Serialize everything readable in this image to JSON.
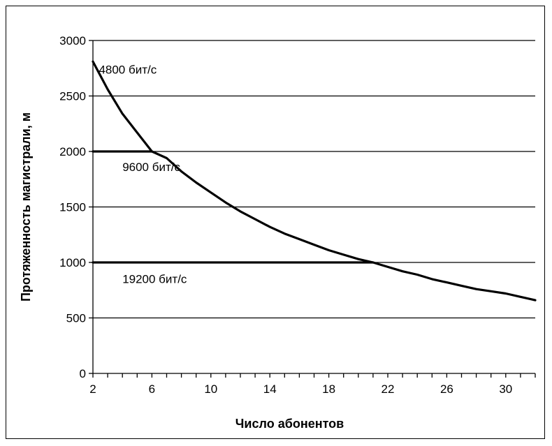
{
  "chart_data": {
    "type": "line",
    "title": "",
    "xlabel": "Число абонентов",
    "ylabel": "Протяженность магистрали, м",
    "xlim": [
      2,
      32
    ],
    "ylim": [
      0,
      3000
    ],
    "xticks": [
      "2",
      "6",
      "10",
      "14",
      "18",
      "22",
      "26",
      "30"
    ],
    "yticks": [
      "0",
      "500",
      "1000",
      "1500",
      "2000",
      "2500",
      "3000"
    ],
    "grid": "horizontal",
    "legend": "none",
    "series": [
      {
        "name": "4800 бит/с",
        "x": [
          2,
          3,
          4,
          5,
          6,
          7,
          8,
          9,
          10,
          11,
          12,
          13,
          14,
          15,
          16,
          17,
          18,
          19,
          20,
          21,
          22,
          23,
          24,
          25,
          26,
          27,
          28,
          29,
          30,
          31,
          32
        ],
        "y": [
          2810,
          2560,
          2340,
          2170,
          2000,
          1940,
          1820,
          1720,
          1630,
          1540,
          1460,
          1390,
          1320,
          1260,
          1210,
          1160,
          1110,
          1070,
          1030,
          1000,
          960,
          920,
          890,
          850,
          820,
          790,
          760,
          740,
          720,
          690,
          660
        ]
      },
      {
        "name": "9600 бит/с",
        "x": [
          2,
          3,
          4,
          5,
          6
        ],
        "y": [
          2000,
          2000,
          2000,
          2000,
          2000
        ]
      },
      {
        "name": "19200 бит/с",
        "x": [
          2,
          6,
          10,
          14,
          18,
          21
        ],
        "y": [
          1000,
          1000,
          1000,
          1000,
          1000,
          1000
        ]
      }
    ],
    "annotations": [
      "4800 бит/с",
      "9600 бит/с",
      "19200 бит/с"
    ]
  }
}
